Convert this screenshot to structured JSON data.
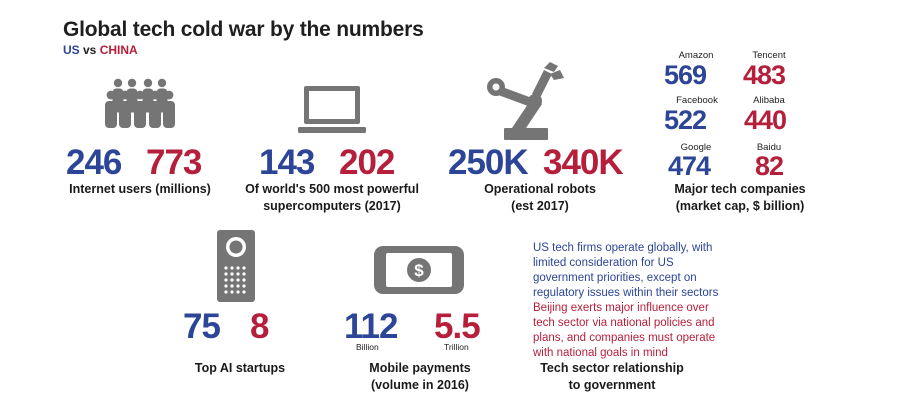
{
  "header": {
    "title": "Global tech cold war by the numbers",
    "subtitle_us": "US",
    "subtitle_vs": " vs ",
    "subtitle_cn": "CHINA"
  },
  "colors": {
    "us": "#2c4596",
    "china": "#b51f3b",
    "icon": "#757575"
  },
  "stats": {
    "internet_users": {
      "icon": "people-group-icon",
      "us": "246",
      "china": "773",
      "label": "Internet users (millions)"
    },
    "supercomputers": {
      "icon": "laptop-icon",
      "us": "143",
      "china": "202",
      "label_line1": "Of world's 500 most powerful",
      "label_line2": "supercomputers (2017)"
    },
    "robots": {
      "icon": "robot-arm-icon",
      "us": "250K",
      "china": "340K",
      "label_line1": "Operational robots",
      "label_line2": "(est 2017)"
    },
    "ai_startups": {
      "icon": "smart-speaker-icon",
      "us": "75",
      "china": "8",
      "label": "Top AI startups"
    },
    "mobile_payments": {
      "icon": "phone-dollar-icon",
      "us": "112",
      "us_unit": "Billion",
      "china": "5.5",
      "china_unit": "Trillion",
      "label_line1": "Mobile payments",
      "label_line2": "(volume in 2016)"
    }
  },
  "companies": {
    "label_line1": "Major tech companies",
    "label_line2": "(market cap, $ billion)",
    "rows": [
      {
        "us_name": "Amazon",
        "us_value": "569",
        "cn_name": "Tencent",
        "cn_value": "483"
      },
      {
        "us_name": "Facebook",
        "us_value": "522",
        "cn_name": "Alibaba",
        "cn_value": "440"
      },
      {
        "us_name": "Google",
        "us_value": "474",
        "cn_name": "Baidu",
        "cn_value": "82"
      }
    ]
  },
  "relationship": {
    "us_text": [
      "US tech firms operate globally, with",
      "limited consideration for US",
      "government priorities, except on",
      "regulatory issues within their sectors"
    ],
    "cn_text": [
      "Beijing exerts major influence over",
      "tech sector via national policies and",
      "plans, and companies must operate",
      "with national goals in mind"
    ],
    "label_line1": "Tech sector relationship",
    "label_line2": "to government"
  }
}
